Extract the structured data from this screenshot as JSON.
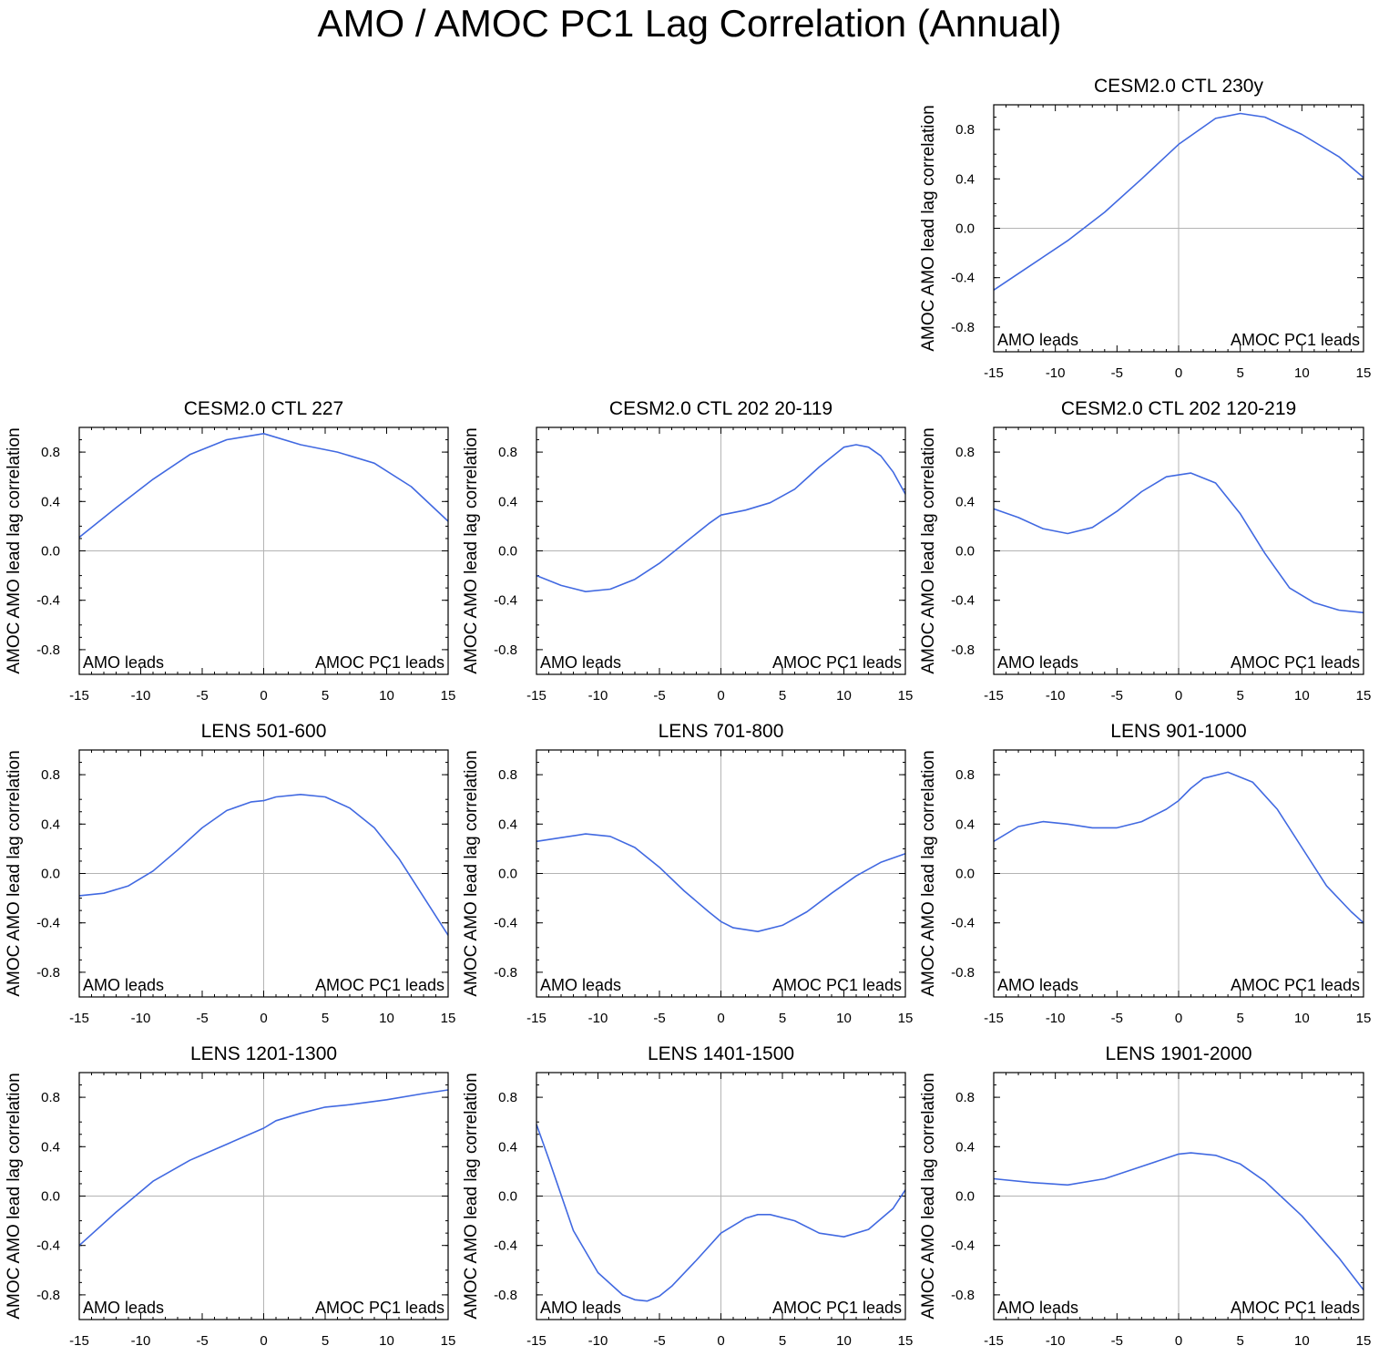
{
  "figure_title": "AMO / AMOC PC1 Lag Correlation (Annual)",
  "chart_data": [
    {
      "type": "line",
      "title": "CESM2.0 CTL 230y",
      "ylabel": "AMOC AMO lead lag correlation",
      "xlabel": "",
      "xlim": [
        -15,
        15
      ],
      "ylim": [
        -1.0,
        1.0
      ],
      "xticks": [
        -15,
        -10,
        -5,
        0,
        5,
        10,
        15
      ],
      "yticks": [
        -0.8,
        -0.4,
        0.0,
        0.4,
        0.8
      ],
      "annotations": {
        "left": "AMO leads",
        "right": "AMOC PC1 leads"
      },
      "color": "#4169E1",
      "x": [
        -15,
        -12,
        -9,
        -6,
        -3,
        0,
        3,
        5,
        7,
        10,
        13,
        15
      ],
      "y": [
        -0.5,
        -0.3,
        -0.1,
        0.13,
        0.4,
        0.68,
        0.89,
        0.93,
        0.9,
        0.76,
        0.58,
        0.41
      ]
    },
    {
      "type": "line",
      "title": "CESM2.0 CTL 227",
      "ylabel": "AMOC AMO lead lag correlation",
      "xlabel": "",
      "xlim": [
        -15,
        15
      ],
      "ylim": [
        -1.0,
        1.0
      ],
      "xticks": [
        -15,
        -10,
        -5,
        0,
        5,
        10,
        15
      ],
      "yticks": [
        -0.8,
        -0.4,
        0.0,
        0.4,
        0.8
      ],
      "annotations": {
        "left": "AMO leads",
        "right": "AMOC PC1 leads"
      },
      "color": "#4169E1",
      "x": [
        -15,
        -12,
        -9,
        -6,
        -3,
        0,
        3,
        6,
        9,
        12,
        15
      ],
      "y": [
        0.11,
        0.35,
        0.58,
        0.78,
        0.9,
        0.95,
        0.86,
        0.8,
        0.71,
        0.52,
        0.24
      ]
    },
    {
      "type": "line",
      "title": "CESM2.0 CTL 202 20-119",
      "ylabel": "AMOC AMO lead lag correlation",
      "xlabel": "",
      "xlim": [
        -15,
        15
      ],
      "ylim": [
        -1.0,
        1.0
      ],
      "xticks": [
        -15,
        -10,
        -5,
        0,
        5,
        10,
        15
      ],
      "yticks": [
        -0.8,
        -0.4,
        0.0,
        0.4,
        0.8
      ],
      "annotations": {
        "left": "AMO leads",
        "right": "AMOC PC1 leads"
      },
      "color": "#4169E1",
      "x": [
        -15,
        -13,
        -11,
        -9,
        -7,
        -5,
        -3,
        -1,
        0,
        2,
        4,
        6,
        8,
        10,
        11,
        12,
        13,
        14,
        15
      ],
      "y": [
        -0.2,
        -0.28,
        -0.33,
        -0.31,
        -0.23,
        -0.1,
        0.06,
        0.22,
        0.29,
        0.33,
        0.39,
        0.5,
        0.68,
        0.84,
        0.86,
        0.84,
        0.77,
        0.64,
        0.46
      ]
    },
    {
      "type": "line",
      "title": "CESM2.0 CTL 202 120-219",
      "ylabel": "AMOC AMO lead lag correlation",
      "xlabel": "",
      "xlim": [
        -15,
        15
      ],
      "ylim": [
        -1.0,
        1.0
      ],
      "xticks": [
        -15,
        -10,
        -5,
        0,
        5,
        10,
        15
      ],
      "yticks": [
        -0.8,
        -0.4,
        0.0,
        0.4,
        0.8
      ],
      "annotations": {
        "left": "AMO leads",
        "right": "AMOC PC1 leads"
      },
      "color": "#4169E1",
      "x": [
        -15,
        -13,
        -11,
        -9,
        -7,
        -5,
        -3,
        -1,
        1,
        3,
        5,
        7,
        9,
        11,
        13,
        15
      ],
      "y": [
        0.34,
        0.27,
        0.18,
        0.14,
        0.19,
        0.32,
        0.48,
        0.6,
        0.63,
        0.55,
        0.3,
        -0.02,
        -0.3,
        -0.42,
        -0.48,
        -0.5
      ]
    },
    {
      "type": "line",
      "title": "LENS 501-600",
      "ylabel": "AMOC AMO lead lag correlation",
      "xlabel": "",
      "xlim": [
        -15,
        15
      ],
      "ylim": [
        -1.0,
        1.0
      ],
      "xticks": [
        -15,
        -10,
        -5,
        0,
        5,
        10,
        15
      ],
      "yticks": [
        -0.8,
        -0.4,
        0.0,
        0.4,
        0.8
      ],
      "annotations": {
        "left": "AMO leads",
        "right": "AMOC PC1 leads"
      },
      "color": "#4169E1",
      "x": [
        -15,
        -13,
        -11,
        -9,
        -7,
        -5,
        -3,
        -1,
        0,
        1,
        3,
        5,
        7,
        9,
        11,
        13,
        15
      ],
      "y": [
        -0.18,
        -0.16,
        -0.1,
        0.02,
        0.19,
        0.37,
        0.51,
        0.58,
        0.59,
        0.62,
        0.64,
        0.62,
        0.53,
        0.37,
        0.12,
        -0.19,
        -0.5
      ]
    },
    {
      "type": "line",
      "title": "LENS 701-800",
      "ylabel": "AMOC AMO lead lag correlation",
      "xlabel": "",
      "xlim": [
        -15,
        15
      ],
      "ylim": [
        -1.0,
        1.0
      ],
      "xticks": [
        -15,
        -10,
        -5,
        0,
        5,
        10,
        15
      ],
      "yticks": [
        -0.8,
        -0.4,
        0.0,
        0.4,
        0.8
      ],
      "annotations": {
        "left": "AMO leads",
        "right": "AMOC PC1 leads"
      },
      "color": "#4169E1",
      "x": [
        -15,
        -13,
        -11,
        -9,
        -7,
        -5,
        -3,
        -1,
        0,
        1,
        3,
        5,
        7,
        9,
        11,
        13,
        15
      ],
      "y": [
        0.26,
        0.29,
        0.32,
        0.3,
        0.21,
        0.05,
        -0.14,
        -0.31,
        -0.39,
        -0.44,
        -0.47,
        -0.42,
        -0.31,
        -0.16,
        -0.02,
        0.09,
        0.16
      ]
    },
    {
      "type": "line",
      "title": "LENS 901-1000",
      "ylabel": "AMOC AMO lead lag correlation",
      "xlabel": "",
      "xlim": [
        -15,
        15
      ],
      "ylim": [
        -1.0,
        1.0
      ],
      "xticks": [
        -15,
        -10,
        -5,
        0,
        5,
        10,
        15
      ],
      "yticks": [
        -0.8,
        -0.4,
        0.0,
        0.4,
        0.8
      ],
      "annotations": {
        "left": "AMO leads",
        "right": "AMOC PC1 leads"
      },
      "color": "#4169E1",
      "x": [
        -15,
        -13,
        -11,
        -9,
        -7,
        -5,
        -3,
        -1,
        0,
        1,
        2,
        4,
        6,
        8,
        10,
        12,
        14,
        15
      ],
      "y": [
        0.26,
        0.38,
        0.42,
        0.4,
        0.37,
        0.37,
        0.42,
        0.52,
        0.59,
        0.69,
        0.77,
        0.82,
        0.74,
        0.52,
        0.21,
        -0.1,
        -0.31,
        -0.4
      ]
    },
    {
      "type": "line",
      "title": "LENS 1201-1300",
      "ylabel": "AMOC AMO lead lag correlation",
      "xlabel": "",
      "xlim": [
        -15,
        15
      ],
      "ylim": [
        -1.0,
        1.0
      ],
      "xticks": [
        -15,
        -10,
        -5,
        0,
        5,
        10,
        15
      ],
      "yticks": [
        -0.8,
        -0.4,
        0.0,
        0.4,
        0.8
      ],
      "annotations": {
        "left": "AMO leads",
        "right": "AMOC PC1 leads"
      },
      "color": "#4169E1",
      "x": [
        -15,
        -12,
        -9,
        -6,
        -3,
        0,
        1,
        3,
        5,
        7,
        10,
        13,
        15
      ],
      "y": [
        -0.4,
        -0.13,
        0.12,
        0.29,
        0.42,
        0.55,
        0.61,
        0.67,
        0.72,
        0.74,
        0.78,
        0.83,
        0.86
      ]
    },
    {
      "type": "line",
      "title": "LENS 1401-1500",
      "ylabel": "AMOC AMO lead lag correlation",
      "xlabel": "",
      "xlim": [
        -15,
        15
      ],
      "ylim": [
        -1.0,
        1.0
      ],
      "xticks": [
        -15,
        -10,
        -5,
        0,
        5,
        10,
        15
      ],
      "yticks": [
        -0.8,
        -0.4,
        0.0,
        0.4,
        0.8
      ],
      "annotations": {
        "left": "AMO leads",
        "right": "AMOC PC1 leads"
      },
      "color": "#4169E1",
      "x": [
        -15,
        -14,
        -12,
        -10,
        -8,
        -7,
        -6,
        -5,
        -4,
        -2,
        0,
        2,
        3,
        4,
        6,
        8,
        10,
        12,
        14,
        15
      ],
      "y": [
        0.58,
        0.3,
        -0.28,
        -0.62,
        -0.8,
        -0.84,
        -0.85,
        -0.81,
        -0.73,
        -0.52,
        -0.3,
        -0.18,
        -0.15,
        -0.15,
        -0.2,
        -0.3,
        -0.33,
        -0.27,
        -0.1,
        0.05
      ]
    },
    {
      "type": "line",
      "title": "LENS 1901-2000",
      "ylabel": "AMOC AMO lead lag correlation",
      "xlabel": "",
      "xlim": [
        -15,
        15
      ],
      "ylim": [
        -1.0,
        1.0
      ],
      "xticks": [
        -15,
        -10,
        -5,
        0,
        5,
        10,
        15
      ],
      "yticks": [
        -0.8,
        -0.4,
        0.0,
        0.4,
        0.8
      ],
      "annotations": {
        "left": "AMO leads",
        "right": "AMOC PC1 leads"
      },
      "color": "#4169E1",
      "x": [
        -15,
        -12,
        -9,
        -6,
        -3,
        0,
        1,
        3,
        5,
        7,
        10,
        13,
        15
      ],
      "y": [
        0.14,
        0.11,
        0.09,
        0.14,
        0.24,
        0.34,
        0.35,
        0.33,
        0.26,
        0.12,
        -0.16,
        -0.5,
        -0.76
      ]
    }
  ]
}
